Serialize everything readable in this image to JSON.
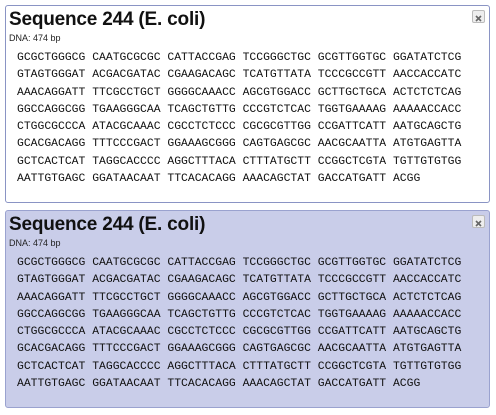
{
  "panels": [
    {
      "title": "Sequence 244 (E. coli)",
      "subtitle": "DNA: 474 bp",
      "lines": [
        "GCGCTGGGCG CAATGCGCGC CATTACCGAG TCCGGGCTGC GCGTTGGTGC GGATATCTCG",
        "GTAGTGGGAT ACGACGATAC CGAAGACAGC TCATGTTATA TCCCGCCGTT AACCACCATC",
        "AAACAGGATT TTCGCCTGCT GGGGCAAACC AGCGTGGACC GCTTGCTGCA ACTCTCTCAG",
        "GGCCAGGCGG TGAAGGGCAA TCAGCTGTTG CCCGTCTCAC TGGTGAAAAG AAAAACCACC",
        "CTGGCGCCCA ATACGCAAAC CGCCTCTCCC CGCGCGTTGG CCGATTCATT AATGCAGCTG",
        "GCACGACAGG TTTCCCGACT GGAAAGCGGG CAGTGAGCGC AACGCAATTA ATGTGAGTTA",
        "GCTCACTCAT TAGGCACCCC AGGCTTTACA CTTTATGCTT CCGGCTCGTA TGTTGTGTGG",
        "AATTGTGAGC GGATAACAAT TTCACACAGG AAACAGCTAT GACCATGATT ACGG"
      ]
    },
    {
      "title": "Sequence 244 (E. coli)",
      "subtitle": "DNA: 474 bp",
      "lines": [
        "GCGCTGGGCG CAATGCGCGC CATTACCGAG TCCGGGCTGC GCGTTGGTGC GGATATCTCG",
        "GTAGTGGGAT ACGACGATAC CGAAGACAGC TCATGTTATA TCCCGCCGTT AACCACCATC",
        "AAACAGGATT TTCGCCTGCT GGGGCAAACC AGCGTGGACC GCTTGCTGCA ACTCTCTCAG",
        "GGCCAGGCGG TGAAGGGCAA TCAGCTGTTG CCCGTCTCAC TGGTGAAAAG AAAAACCACC",
        "CTGGCGCCCA ATACGCAAAC CGCCTCTCCC CGCGCGTTGG CCGATTCATT AATGCAGCTG",
        "GCACGACAGG TTTCCCGACT GGAAAGCGGG CAGTGAGCGC AACGCAATTA ATGTGAGTTA",
        "GCTCACTCAT TAGGCACCCC AGGCTTTACA CTTTATGCTT CCGGCTCGTA TGTTGTGTGG",
        "AATTGTGAGC GGATAACAAT TTCACACAGG AAACAGCTAT GACCATGATT ACGG"
      ]
    }
  ]
}
